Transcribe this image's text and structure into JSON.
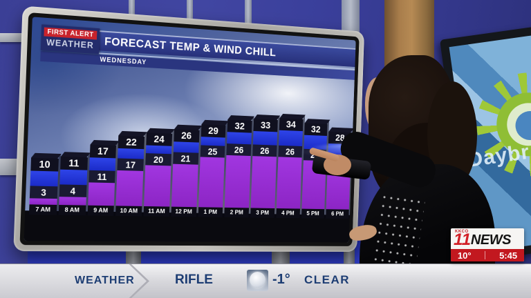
{
  "screen": {
    "brand_line1": "FIRST ALERT",
    "brand_line2": "WEATHER",
    "title": "FORECAST TEMP & WIND CHILL",
    "subtitle": "WEDNESDAY"
  },
  "chart_data": {
    "type": "bar",
    "title": "FORECAST TEMP & WIND CHILL",
    "subtitle": "WEDNESDAY",
    "categories": [
      "7 AM",
      "8 AM",
      "9 AM",
      "10 AM",
      "11 AM",
      "12 PM",
      "1 PM",
      "2 PM",
      "3 PM",
      "4 PM",
      "5 PM",
      "6 PM"
    ],
    "series": [
      {
        "name": "Forecast Temp",
        "values": [
          10,
          11,
          17,
          22,
          24,
          26,
          29,
          32,
          33,
          34,
          32,
          28
        ],
        "color_top": "#2e44e8",
        "color_bottom": "#1b2bc8"
      },
      {
        "name": "Wind Chill",
        "values": [
          3,
          4,
          11,
          17,
          20,
          21,
          25,
          26,
          26,
          26,
          25,
          22
        ],
        "color_top": "#a136e0",
        "color_bottom": "#8c25c4"
      }
    ],
    "legend": "none",
    "grid": false,
    "unit": "°F",
    "layout": "stacked-column, temp label on top cap, wind chill label at segment boundary, time label at base"
  },
  "side_monitor": {
    "visible_text": "Daybr"
  },
  "banner": {
    "section_label": "WEATHER",
    "location": "RIFLE",
    "icon": "moon-clear-night-icon",
    "current_temp": "-1°",
    "condition": "CLEAR"
  },
  "station_bug": {
    "station": "KKCO",
    "channel": "11",
    "word": "NEWS",
    "temp": "10°",
    "time": "5:45"
  },
  "colors": {
    "temp_bar": "#2637dd",
    "wind_chill_bar": "#9127cc",
    "header_navy": "#2a357f",
    "alert_red": "#c8232c",
    "bug_red": "#c2181f"
  }
}
